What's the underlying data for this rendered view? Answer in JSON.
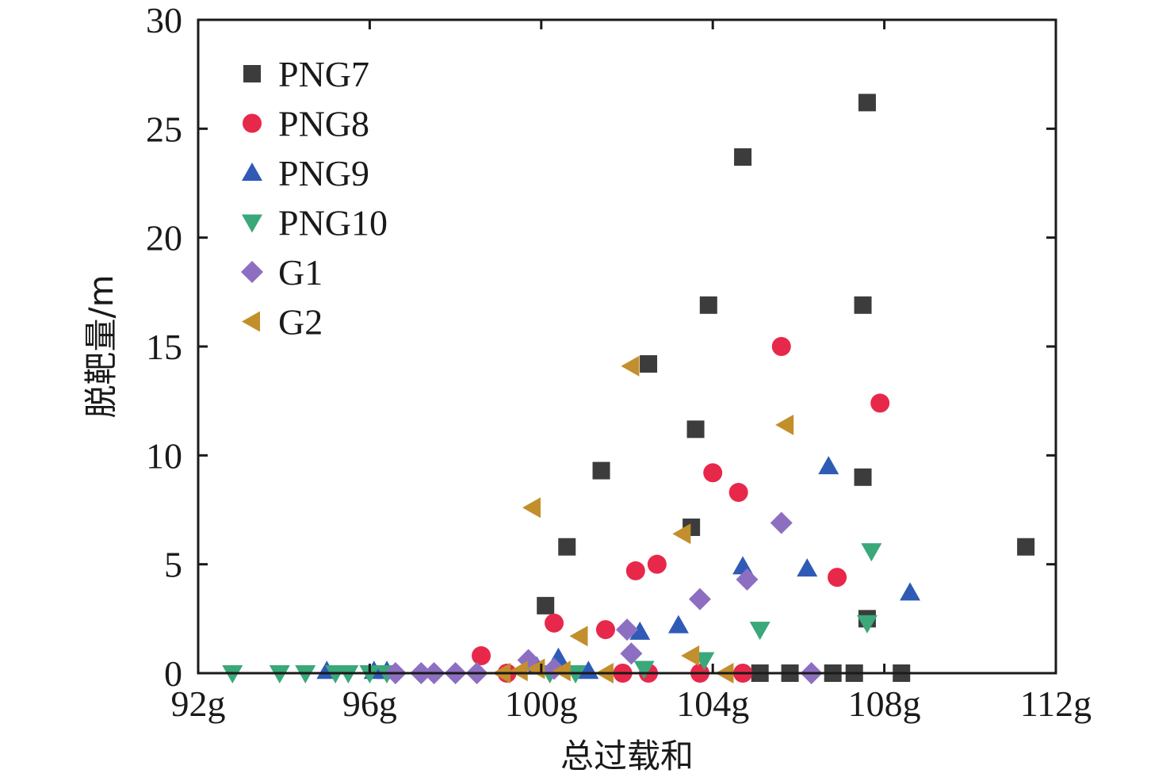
{
  "chart_data": {
    "type": "scatter",
    "title": "",
    "xlabel": "总过载和",
    "ylabel": "脱靶量/m",
    "xlim": [
      92,
      112
    ],
    "ylim": [
      0,
      30
    ],
    "x_ticks": [
      92,
      96,
      100,
      104,
      108,
      112
    ],
    "x_tick_labels": [
      "92g",
      "96g",
      "100g",
      "104g",
      "108g",
      "112g"
    ],
    "y_ticks": [
      0,
      5,
      10,
      15,
      20,
      25,
      30
    ],
    "y_tick_labels": [
      "0",
      "5",
      "10",
      "15",
      "20",
      "25",
      "30"
    ],
    "grid": false,
    "legend_position": "top-left",
    "series": [
      {
        "name": "PNG7",
        "marker": "square",
        "color": "#3c3c3c",
        "points": [
          [
            100.1,
            3.1
          ],
          [
            100.6,
            5.8
          ],
          [
            101.4,
            9.3
          ],
          [
            102.5,
            14.2
          ],
          [
            103.5,
            6.7
          ],
          [
            103.6,
            11.2
          ],
          [
            103.9,
            16.9
          ],
          [
            104.7,
            23.7
          ],
          [
            105.1,
            0.0
          ],
          [
            105.8,
            0.0
          ],
          [
            106.8,
            0.0
          ],
          [
            107.3,
            0.0
          ],
          [
            107.5,
            9.0
          ],
          [
            107.5,
            16.9
          ],
          [
            107.6,
            2.5
          ],
          [
            107.6,
            26.2
          ],
          [
            108.4,
            0.0
          ],
          [
            111.3,
            5.8
          ]
        ]
      },
      {
        "name": "PNG8",
        "marker": "circle",
        "color": "#e8284a",
        "points": [
          [
            98.6,
            0.8
          ],
          [
            100.3,
            2.3
          ],
          [
            101.5,
            2.0
          ],
          [
            102.2,
            4.7
          ],
          [
            102.7,
            5.0
          ],
          [
            104.0,
            9.2
          ],
          [
            104.6,
            8.3
          ],
          [
            104.7,
            0.0
          ],
          [
            105.6,
            15.0
          ],
          [
            106.9,
            4.4
          ],
          [
            107.9,
            12.4
          ],
          [
            101.9,
            0.0
          ],
          [
            102.5,
            0.0
          ],
          [
            103.7,
            0.0
          ],
          [
            99.2,
            0.0
          ]
        ]
      },
      {
        "name": "PNG9",
        "marker": "triangle-up",
        "color": "#2f5bb7",
        "points": [
          [
            96.1,
            0.1
          ],
          [
            96.4,
            0.1
          ],
          [
            95.0,
            0.1
          ],
          [
            99.9,
            0.3
          ],
          [
            100.4,
            0.7
          ],
          [
            102.3,
            1.9
          ],
          [
            103.2,
            2.2
          ],
          [
            104.7,
            4.9
          ],
          [
            106.2,
            4.8
          ],
          [
            106.7,
            9.5
          ],
          [
            108.6,
            3.7
          ],
          [
            101.1,
            0.1
          ]
        ]
      },
      {
        "name": "PNG10",
        "marker": "triangle-down",
        "color": "#3aa87a",
        "points": [
          [
            92.8,
            0.0
          ],
          [
            93.9,
            0.0
          ],
          [
            94.5,
            0.0
          ],
          [
            95.2,
            0.0
          ],
          [
            95.5,
            0.0
          ],
          [
            96.0,
            0.0
          ],
          [
            96.4,
            0.0
          ],
          [
            100.2,
            0.0
          ],
          [
            100.8,
            0.0
          ],
          [
            102.4,
            0.2
          ],
          [
            103.8,
            0.6
          ],
          [
            105.1,
            2.0
          ],
          [
            107.7,
            5.6
          ],
          [
            107.6,
            2.3
          ]
        ]
      },
      {
        "name": "G1",
        "marker": "diamond",
        "color": "#8d6fc2",
        "points": [
          [
            96.6,
            0.0
          ],
          [
            97.2,
            0.0
          ],
          [
            97.5,
            0.0
          ],
          [
            98.0,
            0.0
          ],
          [
            98.5,
            0.0
          ],
          [
            99.7,
            0.6
          ],
          [
            100.3,
            0.2
          ],
          [
            102.0,
            2.0
          ],
          [
            102.1,
            0.9
          ],
          [
            103.7,
            3.4
          ],
          [
            104.8,
            4.3
          ],
          [
            105.6,
            6.9
          ],
          [
            106.3,
            0.0
          ]
        ]
      },
      {
        "name": "G2",
        "marker": "triangle-left",
        "color": "#c28f2c",
        "points": [
          [
            99.1,
            0.0
          ],
          [
            99.5,
            0.1
          ],
          [
            99.8,
            7.6
          ],
          [
            99.9,
            0.2
          ],
          [
            100.5,
            0.1
          ],
          [
            100.9,
            1.7
          ],
          [
            101.5,
            0.0
          ],
          [
            102.1,
            14.1
          ],
          [
            103.3,
            6.4
          ],
          [
            103.5,
            0.8
          ],
          [
            104.3,
            0.0
          ],
          [
            105.7,
            11.4
          ]
        ]
      }
    ]
  }
}
